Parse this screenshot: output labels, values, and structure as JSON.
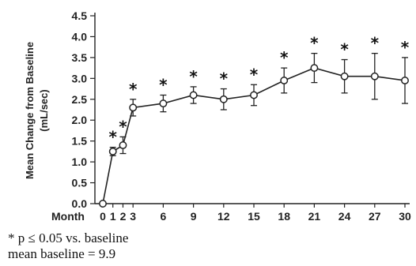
{
  "chart_data": {
    "type": "line",
    "ylabel_line1": "Mean Change from Baseline",
    "ylabel_line2": "(mL/sec)",
    "xaxis_prefix": "Month",
    "ylim": [
      0,
      4.5
    ],
    "yticks": [
      "0.0",
      "0.5",
      "1.0",
      "1.5",
      "2.0",
      "2.5",
      "3.0",
      "3.5",
      "4.0",
      "4.5"
    ],
    "xticks": [
      "0",
      "1",
      "2",
      "3",
      "6",
      "9",
      "12",
      "15",
      "18",
      "21",
      "24",
      "27",
      "30"
    ],
    "series": [
      {
        "points": [
          {
            "x": 0,
            "y": 0.0,
            "err": null,
            "sig": false
          },
          {
            "x": 1,
            "y": 1.25,
            "err": 0.1,
            "sig": true
          },
          {
            "x": 2,
            "y": 1.4,
            "err": 0.2,
            "sig": true
          },
          {
            "x": 3,
            "y": 2.3,
            "err": 0.2,
            "sig": true
          },
          {
            "x": 6,
            "y": 2.4,
            "err": 0.2,
            "sig": true
          },
          {
            "x": 9,
            "y": 2.6,
            "err": 0.2,
            "sig": true
          },
          {
            "x": 12,
            "y": 2.5,
            "err": 0.25,
            "sig": true
          },
          {
            "x": 15,
            "y": 2.6,
            "err": 0.25,
            "sig": true
          },
          {
            "x": 18,
            "y": 2.95,
            "err": 0.3,
            "sig": true
          },
          {
            "x": 21,
            "y": 3.25,
            "err": 0.35,
            "sig": true
          },
          {
            "x": 24,
            "y": 3.05,
            "err": 0.4,
            "sig": true
          },
          {
            "x": 27,
            "y": 3.05,
            "err": 0.55,
            "sig": true
          },
          {
            "x": 30,
            "y": 2.95,
            "err": 0.55,
            "sig": true
          }
        ]
      }
    ],
    "significance_symbol": "*"
  },
  "footnotes": {
    "line1": "* p ≤ 0.05 vs. baseline",
    "line2": "mean baseline = 9.9"
  }
}
